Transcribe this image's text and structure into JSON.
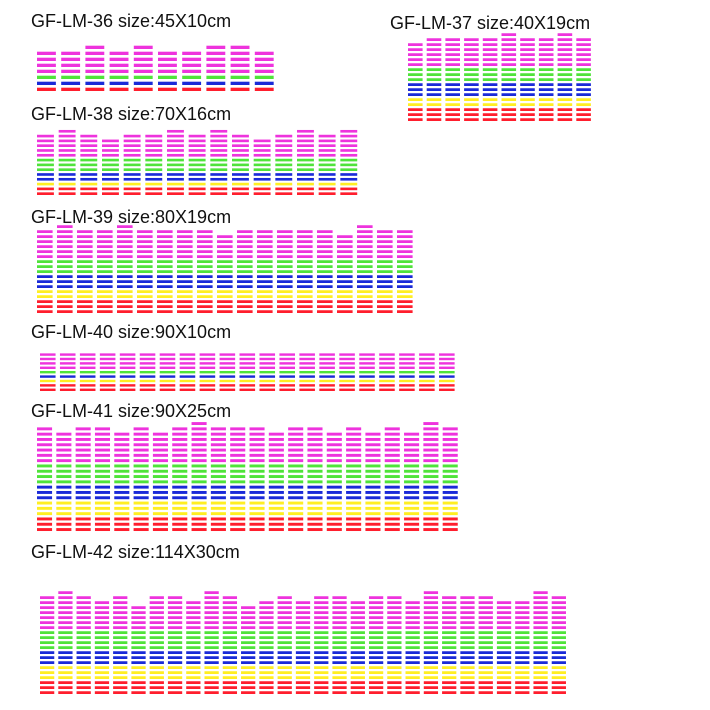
{
  "colors": {
    "red": "#ff1e2d",
    "yellow": "#ffee22",
    "blue": "#1a2ad8",
    "green": "#4fe33a",
    "magenta": "#ee33dd"
  },
  "products": [
    {
      "model": "GF-LM-36",
      "size_text": "size:45X10cm",
      "label": "GF-LM-36 size:45X10cm",
      "bars": [
        3,
        3,
        4,
        3,
        4,
        3,
        3,
        4,
        4,
        3
      ],
      "stack": [
        1,
        0,
        1,
        1,
        1
      ]
    },
    {
      "model": "GF-LM-37",
      "size_text": "size:40X19cm",
      "label": "GF-LM-37 size:40X19cm",
      "bars": [
        2,
        3,
        3,
        3,
        3,
        4,
        3,
        3,
        4,
        3
      ],
      "stack": [
        3,
        2,
        3,
        3,
        3
      ]
    },
    {
      "model": "GF-LM-38",
      "size_text": "size:70X16cm",
      "label": "GF-LM-38 size:70X16cm",
      "bars": [
        2,
        3,
        2,
        1,
        2,
        2,
        3,
        2,
        3,
        2,
        1,
        2,
        3,
        2,
        3
      ],
      "stack": [
        2,
        1,
        2,
        3,
        3
      ]
    },
    {
      "model": "GF-LM-39",
      "size_text": "size:80X19cm",
      "label": "GF-LM-39 size:80X19cm",
      "bars": [
        3,
        4,
        3,
        3,
        4,
        3,
        3,
        3,
        3,
        2,
        3,
        3,
        3,
        3,
        3,
        2,
        4,
        3,
        3
      ],
      "stack": [
        3,
        2,
        3,
        3,
        3
      ]
    },
    {
      "model": "GF-LM-40",
      "size_text": "size:90X10cm",
      "label": "GF-LM-40 size:90X10cm",
      "bars": [
        2,
        2,
        2,
        2,
        2,
        2,
        2,
        2,
        2,
        2,
        2,
        2,
        2,
        2,
        2,
        2,
        2,
        2,
        2,
        2,
        2
      ],
      "stack": [
        2,
        1,
        1,
        1,
        2
      ]
    },
    {
      "model": "GF-LM-41",
      "size_text": "size:90X25cm",
      "label": "GF-LM-41 size:90X25cm",
      "bars": [
        4,
        3,
        4,
        4,
        3,
        4,
        3,
        4,
        5,
        4,
        4,
        4,
        3,
        4,
        4,
        3,
        4,
        3,
        4,
        3,
        5,
        4
      ],
      "stack": [
        3,
        3,
        3,
        4,
        3
      ]
    },
    {
      "model": "GF-LM-42",
      "size_text": "size:114X30cm",
      "label": "GF-LM-42 size:114X30cm",
      "bars": [
        3,
        4,
        3,
        2,
        3,
        1,
        3,
        3,
        2,
        4,
        3,
        1,
        2,
        3,
        2,
        3,
        3,
        2,
        3,
        3,
        2,
        4,
        3,
        3,
        3,
        2,
        2,
        4,
        3
      ],
      "stack": [
        3,
        3,
        3,
        4,
        4
      ]
    }
  ]
}
